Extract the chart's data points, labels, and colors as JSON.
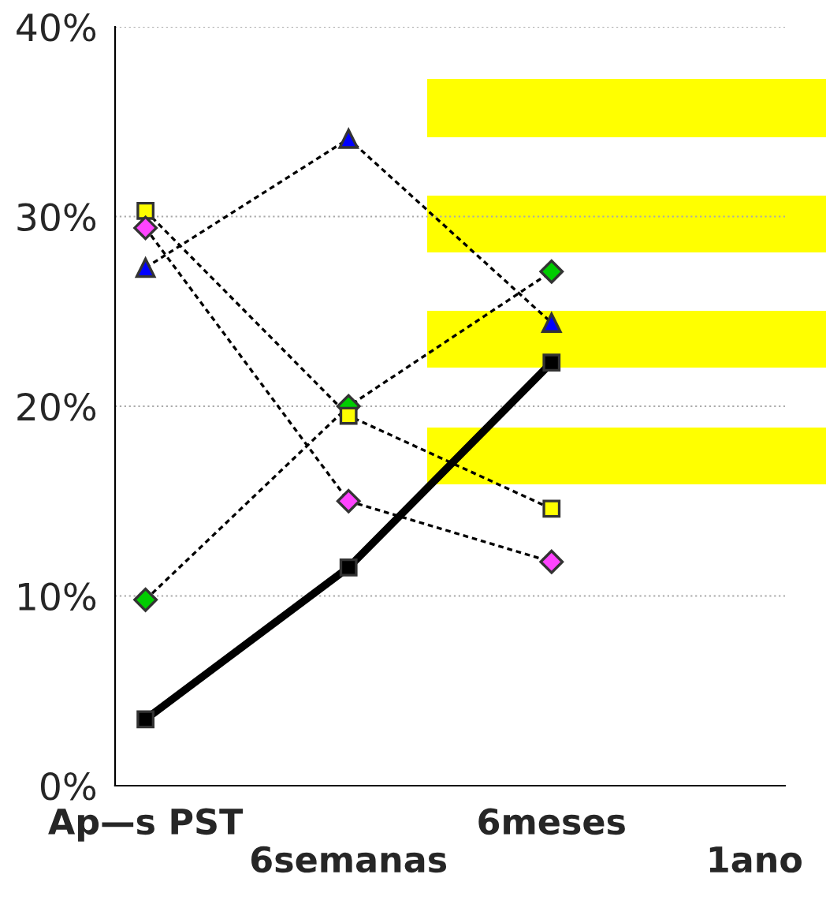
{
  "chart_data": {
    "type": "line",
    "categories": [
      "Ap—s PST",
      "6semanas",
      "6meses",
      "1ano"
    ],
    "series": [
      {
        "color": "#0000ff",
        "marker": "triangle",
        "line_style": "dashed",
        "values": [
          27.3,
          34.1,
          24.4,
          null
        ]
      },
      {
        "color": "#00cc00",
        "marker": "diamond",
        "line_style": "dashed",
        "values": [
          9.8,
          20.0,
          27.1,
          null
        ]
      },
      {
        "color": "#ffff00",
        "marker": "square",
        "line_style": "dashed",
        "values": [
          30.3,
          19.5,
          14.6,
          null
        ]
      },
      {
        "color": "#ff44ff",
        "marker": "diamond",
        "line_style": "dashed",
        "values": [
          29.4,
          15.0,
          11.8,
          null
        ]
      },
      {
        "color": "#000000",
        "marker": "square",
        "line_style": "solid",
        "values": [
          3.5,
          11.5,
          22.3,
          null
        ]
      }
    ],
    "ylim": [
      0,
      40
    ],
    "yticks": [
      {
        "value": 0,
        "label": "0%"
      },
      {
        "value": 10,
        "label": "10%"
      },
      {
        "value": 20,
        "label": "20%"
      },
      {
        "value": 30,
        "label": "30%"
      },
      {
        "value": 40,
        "label": "40%"
      }
    ],
    "grid": "y",
    "legend": false
  }
}
